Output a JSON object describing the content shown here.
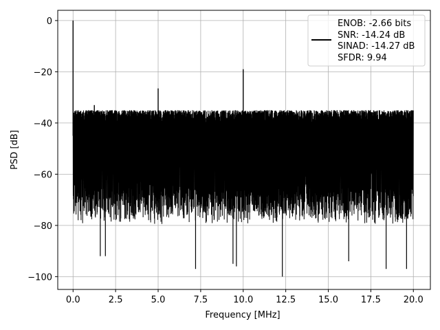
{
  "chart_data": {
    "type": "line",
    "xlabel": "Frequency [MHz]",
    "ylabel": "PSD [dB]",
    "xlim": [
      -0.9,
      21.0
    ],
    "ylim": [
      -105,
      4
    ],
    "xticks": [
      0.0,
      2.5,
      5.0,
      7.5,
      10.0,
      12.5,
      15.0,
      17.5,
      20.0
    ],
    "xtick_labels": [
      "0.0",
      "2.5",
      "5.0",
      "7.5",
      "10.0",
      "12.5",
      "15.0",
      "17.5",
      "20.0"
    ],
    "yticks": [
      0,
      -20,
      -40,
      -60,
      -80,
      -100
    ],
    "ytick_labels": [
      "0",
      "−20",
      "−40",
      "−60",
      "−80",
      "−100"
    ],
    "grid": true,
    "legend_position": "top-right",
    "series": [
      {
        "color": "#000000",
        "noise_floor": {
          "x_range": [
            0.0,
            20.0
          ],
          "upper_envelope_db": -35,
          "lower_envelope_db": -80
        },
        "peaks": [
          {
            "x": 0.0,
            "y": 0.0
          },
          {
            "x": 1.25,
            "y": -33
          },
          {
            "x": 5.0,
            "y": -26.5
          },
          {
            "x": 10.0,
            "y": -19
          }
        ],
        "dips": [
          {
            "x": 1.6,
            "y": -92
          },
          {
            "x": 1.9,
            "y": -92
          },
          {
            "x": 7.2,
            "y": -97
          },
          {
            "x": 9.4,
            "y": -95
          },
          {
            "x": 9.6,
            "y": -96
          },
          {
            "x": 12.3,
            "y": -100
          },
          {
            "x": 16.2,
            "y": -94
          },
          {
            "x": 18.4,
            "y": -97
          },
          {
            "x": 19.6,
            "y": -97
          }
        ]
      }
    ],
    "legend_lines": [
      "ENOB: -2.66 bits",
      "SNR: -14.24 dB",
      "SINAD: -14.27 dB",
      "SFDR: 9.94"
    ]
  }
}
